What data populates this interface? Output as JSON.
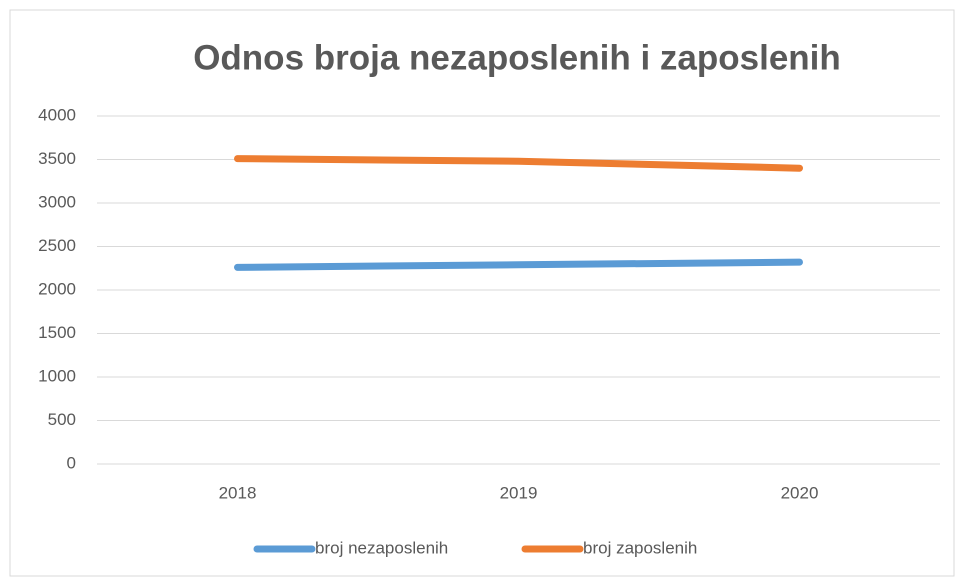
{
  "chart_data": {
    "type": "line",
    "title": "Odnos broja nezaposlenih i zaposlenih",
    "categories": [
      "2018",
      "2019",
      "2020"
    ],
    "series": [
      {
        "name": "broj nezaposlenih",
        "color": "#5b9bd5",
        "values": [
          2260,
          2290,
          2320
        ]
      },
      {
        "name": "broj zaposlenih",
        "color": "#ed7d31",
        "values": [
          3510,
          3480,
          3400
        ]
      }
    ],
    "ylim": [
      0,
      4000
    ],
    "yticks": [
      0,
      500,
      1000,
      1500,
      2000,
      2500,
      3000,
      3500,
      4000
    ],
    "grid": true,
    "legend": "bottom"
  }
}
